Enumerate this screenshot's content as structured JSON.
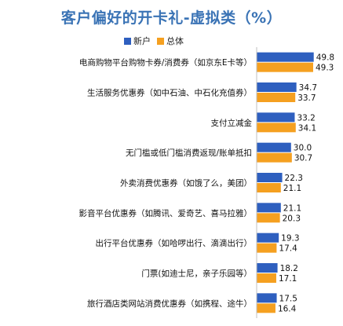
{
  "chart_data": {
    "type": "bar",
    "orientation": "horizontal",
    "title": "客户偏好的开卡礼-虚拟类（%）",
    "categories": [
      "电商购物平台购物卡券/消费券（如京东E卡等）",
      "生活服务优惠券（如中石油、中石化充值券）",
      "支付立减金",
      "无门槛或低门槛消费返现/账单抵扣",
      "外卖消费优惠券（如饿了么，美团）",
      "影音平台优惠券（如腾讯、爱奇艺、喜马拉雅）",
      "出行平台优惠券（如哈啰出行、滴滴出行）",
      "门票(如迪士尼，亲子乐园等）",
      "旅行酒店类网站消费优惠券（如携程、途牛）"
    ],
    "series": [
      {
        "name": "新户",
        "color": "#2e5fbf",
        "values": [
          49.8,
          34.7,
          33.2,
          30.0,
          22.3,
          21.1,
          19.3,
          18.2,
          17.5
        ]
      },
      {
        "name": "总体",
        "color": "#f5a020",
        "values": [
          49.3,
          33.7,
          34.1,
          30.7,
          21.1,
          20.3,
          17.4,
          17.1,
          16.4
        ]
      }
    ],
    "value_labels": [
      [
        "49.8",
        "34.7",
        "33.2",
        "30.0",
        "22.3",
        "21.1",
        "19.3",
        "18.2",
        "17.5"
      ],
      [
        "49.3",
        "33.7",
        "34.1",
        "30.7",
        "21.1",
        "20.3",
        "17.4",
        "17.1",
        "16.4"
      ]
    ],
    "xlim": [
      0,
      50
    ],
    "grid": false,
    "legend_position": "top-center"
  }
}
